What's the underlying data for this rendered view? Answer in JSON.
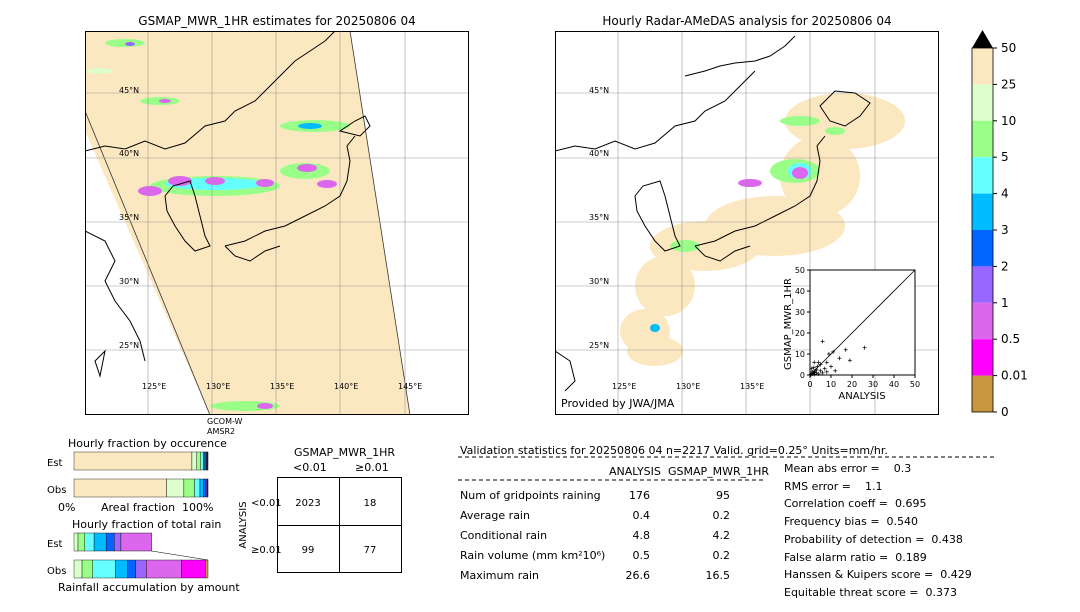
{
  "maps": {
    "left_title": "GSMAP_MWR_1HR estimates for 20250806 04",
    "right_title": "Hourly Radar-AMeDAS analysis for 20250806 04",
    "lat_labels": [
      "45°N",
      "40°N",
      "35°N",
      "30°N",
      "25°N"
    ],
    "lon_labels": [
      "125°E",
      "130°E",
      "135°E",
      "140°E",
      "145°E"
    ],
    "satellite_label_1": "GCOM-W",
    "satellite_label_2": "AMSR2",
    "provided_by": "Provided by JWA/JMA"
  },
  "colorbar": {
    "labels": [
      "50",
      "25",
      "10",
      "5",
      "4",
      "3",
      "2",
      "1",
      "0.5",
      "0.01",
      "0"
    ],
    "colors": [
      "#c8963c",
      "#ff00ff",
      "#dd66ee",
      "#9966ff",
      "#0066ff",
      "#00bbff",
      "#66ffff",
      "#99ff88",
      "#ddffcc",
      "#fce8c0"
    ],
    "over_color": "#000000"
  },
  "chart_data": [
    {
      "type": "scatter",
      "title": "",
      "xlabel": "ANALYSIS",
      "ylabel": "GSMAP_MWR_1HR",
      "xlim": [
        0,
        50
      ],
      "ylim": [
        0,
        50
      ],
      "xticks": [
        "0",
        "10",
        "20",
        "30",
        "40",
        "50"
      ],
      "yticks": [
        "0",
        "10",
        "20",
        "30",
        "40",
        "50"
      ],
      "points": [
        [
          0.5,
          0.2
        ],
        [
          1,
          0.5
        ],
        [
          1.5,
          1
        ],
        [
          2,
          0.3
        ],
        [
          2.5,
          2
        ],
        [
          3,
          1
        ],
        [
          0.8,
          3
        ],
        [
          1.2,
          1.5
        ],
        [
          4,
          0.5
        ],
        [
          5,
          2
        ],
        [
          6,
          1
        ],
        [
          3.5,
          4
        ],
        [
          2,
          6
        ],
        [
          7,
          3
        ],
        [
          8,
          1.5
        ],
        [
          9,
          10
        ],
        [
          10,
          4
        ],
        [
          12,
          2
        ],
        [
          14,
          8
        ],
        [
          17,
          12
        ],
        [
          19,
          7
        ],
        [
          26,
          13
        ],
        [
          6,
          16
        ],
        [
          4,
          6
        ],
        [
          11,
          11
        ],
        [
          3,
          2.5
        ],
        [
          5,
          5
        ],
        [
          1,
          0.8
        ],
        [
          2.2,
          1.2
        ],
        [
          8,
          6
        ],
        [
          0.3,
          0.1
        ],
        [
          1.8,
          3.5
        ]
      ]
    },
    {
      "type": "bar",
      "title": "Hourly fraction by occurence",
      "categories": [
        "Est",
        "Obs"
      ],
      "xlabel": "Areal fraction",
      "x_left_label": "0%",
      "x_right_label": "100%",
      "stacked": true,
      "series_colors": [
        "#fce8c0",
        "#ddffcc",
        "#99ff88",
        "#66ffff",
        "#00bbff",
        "#0066ff",
        "#9966ff",
        "#dd66ee",
        "#ff00ff",
        "#c8963c"
      ],
      "values": [
        [
          0.88,
          0.036,
          0.03,
          0.018,
          0.012,
          0.01,
          0.006,
          0.004,
          0.003,
          0.001
        ],
        [
          0.69,
          0.13,
          0.08,
          0.04,
          0.025,
          0.015,
          0.01,
          0.006,
          0.003,
          0.001
        ]
      ]
    },
    {
      "type": "bar",
      "title": "Hourly fraction of total rain",
      "categories": [
        "Est",
        "Obs"
      ],
      "xlabel": "Rainfall accumulation by amount",
      "stacked": true,
      "series_colors": [
        "#fce8c0",
        "#ddffcc",
        "#99ff88",
        "#66ffff",
        "#00bbff",
        "#0066ff",
        "#9966ff",
        "#dd66ee",
        "#ff00ff",
        "#c8963c"
      ],
      "values": [
        [
          0.0,
          0.03,
          0.05,
          0.07,
          0.09,
          0.06,
          0.05,
          0.23,
          0.0,
          0.0
        ],
        [
          0.0,
          0.06,
          0.08,
          0.17,
          0.09,
          0.06,
          0.08,
          0.26,
          0.18,
          0.02
        ]
      ]
    },
    {
      "type": "table",
      "title": "GSMAP_MWR_1HR",
      "col_labels": [
        "<0.01",
        "≥0.01"
      ],
      "row_axis_label": "ANALYSIS",
      "row_labels": [
        "<0.01",
        "≥0.01"
      ],
      "cells": [
        [
          "2023",
          "18"
        ],
        [
          "99",
          "77"
        ]
      ]
    }
  ],
  "validation": {
    "header": "Validation statistics for 20250806 04  n=2217 Valid. grid=0.25° Units=mm/hr.",
    "col_analysis": "ANALYSIS",
    "col_gsmap": "GSMAP_MWR_1HR",
    "rows": [
      {
        "label": "Num of gridpoints raining",
        "a": "176",
        "g": "95"
      },
      {
        "label": "Average rain",
        "a": "0.4",
        "g": "0.2"
      },
      {
        "label": "Conditional rain",
        "a": "4.8",
        "g": "4.2"
      },
      {
        "label": "Rain volume (mm km²10⁶)",
        "a": "0.5",
        "g": "0.2"
      },
      {
        "label": "Maximum rain",
        "a": "26.6",
        "g": "16.5"
      }
    ],
    "scores": [
      "Mean abs error =    0.3",
      "RMS error =    1.1",
      "Correlation coeff =  0.695",
      "Frequency bias =  0.540",
      "Probability of detection =  0.438",
      "False alarm ratio =  0.189",
      "Hanssen & Kuipers score =  0.429",
      "Equitable threat score =  0.373"
    ]
  }
}
